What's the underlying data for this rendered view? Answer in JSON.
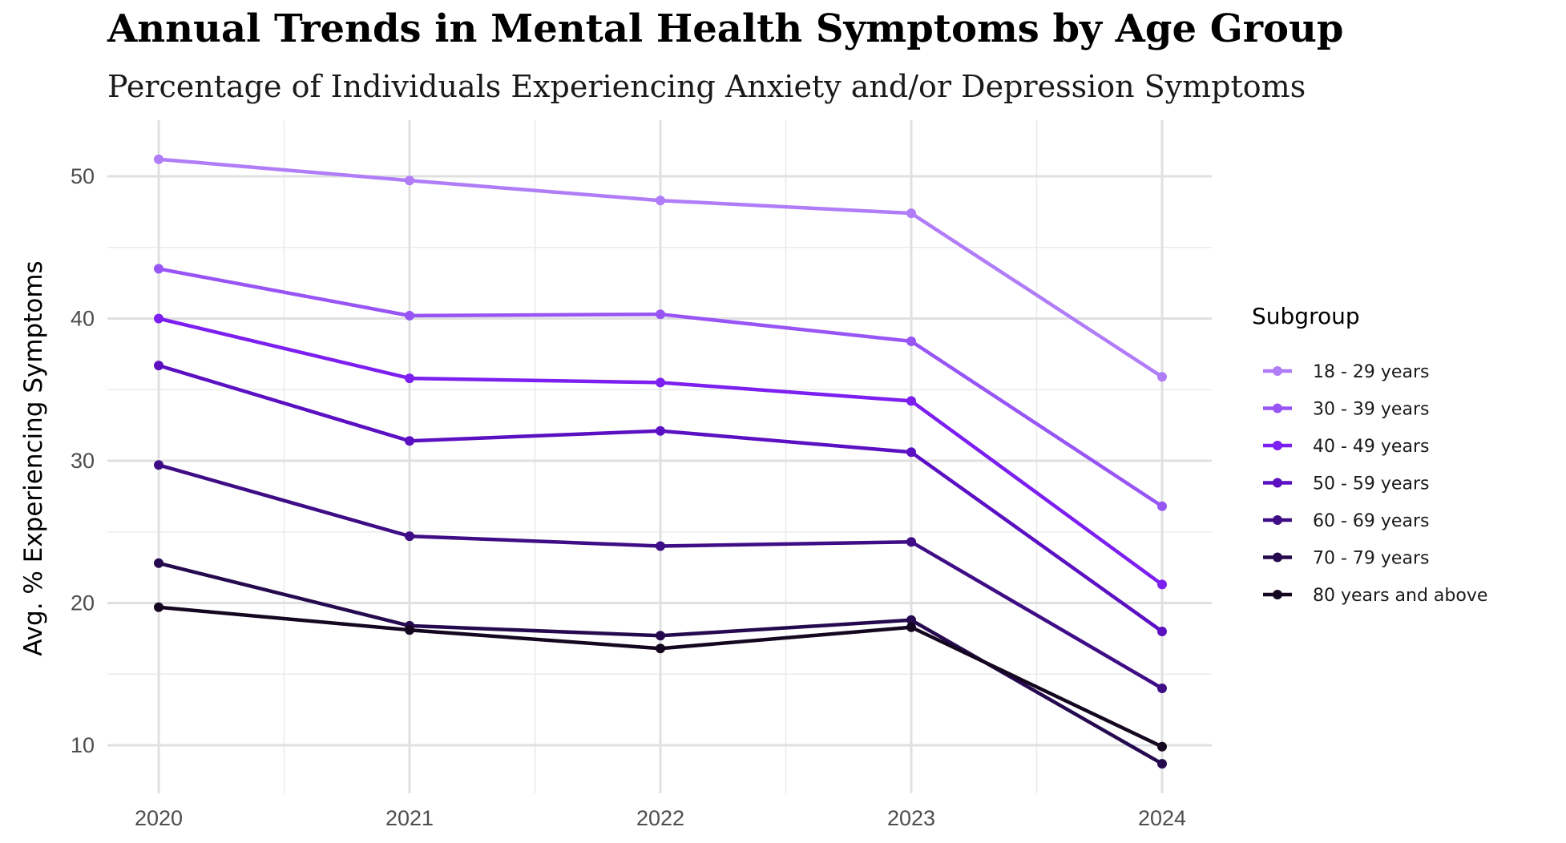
{
  "chart_data": {
    "type": "line",
    "title": "Annual Trends in Mental Health Symptoms by Age Group",
    "subtitle": "Percentage of Individuals Experiencing Anxiety and/or Depression Symptoms",
    "xlabel": "",
    "ylabel": "Avg. % Experiencing Symptoms",
    "x": [
      "2020",
      "2021",
      "2022",
      "2023",
      "2024"
    ],
    "yticks": [
      10,
      20,
      30,
      40,
      50
    ],
    "ylim": [
      7,
      53.5
    ],
    "grid": true,
    "legend": {
      "title": "Subgroup",
      "position": "right"
    },
    "series": [
      {
        "name": "18 - 29 years",
        "color": "#b07cf7",
        "values": [
          51.2,
          49.7,
          48.3,
          47.4,
          35.9
        ]
      },
      {
        "name": "30 - 39 years",
        "color": "#9855f5",
        "values": [
          43.5,
          40.2,
          40.3,
          38.4,
          26.8
        ]
      },
      {
        "name": "40 - 49 years",
        "color": "#7c1ff0",
        "values": [
          40.0,
          35.8,
          35.5,
          34.2,
          21.3
        ]
      },
      {
        "name": "50 - 59 years",
        "color": "#5b11c2",
        "values": [
          36.7,
          31.4,
          32.1,
          30.6,
          18.0
        ]
      },
      {
        "name": "60 - 69 years",
        "color": "#3f0d85",
        "values": [
          29.7,
          24.7,
          24.0,
          24.3,
          14.0
        ]
      },
      {
        "name": "70 - 79 years",
        "color": "#260a4f",
        "values": [
          22.8,
          18.4,
          17.7,
          18.8,
          8.7
        ]
      },
      {
        "name": "80 years and above",
        "color": "#14071f",
        "values": [
          19.7,
          18.1,
          16.8,
          18.3,
          9.9
        ]
      }
    ]
  }
}
